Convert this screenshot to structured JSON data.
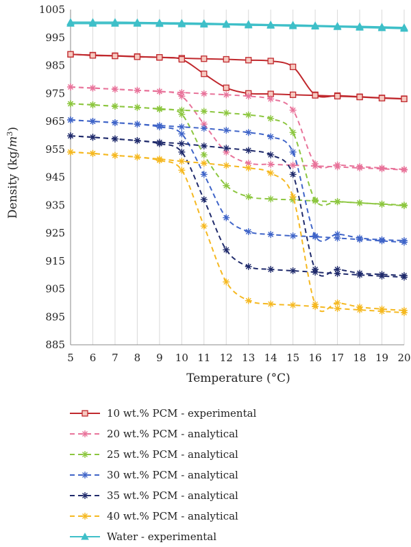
{
  "chart_data": {
    "type": "line",
    "xlabel": "Temperature (°C)",
    "ylabel_main": "Density (kg/",
    "ylabel_unit": "m",
    "ylabel_sup": "3",
    "ylabel_close": ")",
    "xlim": [
      5,
      20
    ],
    "ylim": [
      885,
      1005
    ],
    "x_ticks": [
      5,
      6,
      7,
      8,
      9,
      10,
      11,
      12,
      13,
      14,
      15,
      16,
      17,
      18,
      19,
      20
    ],
    "y_ticks": [
      885,
      895,
      905,
      915,
      925,
      935,
      945,
      955,
      965,
      975,
      985,
      995,
      1005
    ],
    "grid": "vertical",
    "legend_position": "below",
    "series": [
      {
        "name": "10 wt.% PCM - experimental",
        "color": "#C0282D",
        "marker": "square",
        "dashed": false,
        "points": [
          [
            5,
            989
          ],
          [
            6,
            988.7
          ],
          [
            7,
            988.5
          ],
          [
            8,
            988.2
          ],
          [
            9,
            987.9
          ],
          [
            10,
            987.6
          ],
          [
            11,
            987.4
          ],
          [
            12,
            987.2
          ],
          [
            13,
            986.9
          ],
          [
            14,
            986.6
          ],
          [
            15,
            984.5
          ],
          [
            16,
            974.5
          ],
          [
            17,
            974.2
          ],
          [
            18,
            973.8
          ],
          [
            19,
            973.4
          ],
          [
            20,
            973.1
          ]
        ],
        "points2": [
          [
            5,
            989
          ],
          [
            6,
            988.6
          ],
          [
            7,
            988.4
          ],
          [
            8,
            988.1
          ],
          [
            9,
            987.9
          ],
          [
            10,
            987.2
          ],
          [
            11,
            982
          ],
          [
            12,
            977
          ],
          [
            13,
            975
          ],
          [
            14,
            974.8
          ],
          [
            15,
            974.5
          ],
          [
            16,
            974.3
          ],
          [
            17,
            974
          ],
          [
            18,
            973.7
          ],
          [
            19,
            973.3
          ],
          [
            20,
            973.0
          ]
        ]
      },
      {
        "name": "20 wt.% PCM - analytical",
        "color": "#E8739A",
        "marker": "star",
        "dashed": true,
        "points": [
          [
            5,
            977.3
          ],
          [
            6,
            976.9
          ],
          [
            7,
            976.5
          ],
          [
            8,
            976.1
          ],
          [
            9,
            975.7
          ],
          [
            10,
            975.3
          ],
          [
            11,
            974.9
          ],
          [
            12,
            974.5
          ],
          [
            13,
            974
          ],
          [
            14,
            973
          ],
          [
            15,
            969
          ],
          [
            16,
            949.8
          ],
          [
            17,
            949.4
          ],
          [
            18,
            948.8
          ],
          [
            19,
            948.3
          ],
          [
            20,
            947.8
          ]
        ],
        "points2": [
          [
            5,
            977.3
          ],
          [
            6,
            976.9
          ],
          [
            7,
            976.5
          ],
          [
            8,
            976.1
          ],
          [
            9,
            975.7
          ],
          [
            10,
            974
          ],
          [
            11,
            964
          ],
          [
            12,
            954
          ],
          [
            13,
            950
          ],
          [
            14,
            949.6
          ],
          [
            15,
            949.3
          ],
          [
            16,
            949
          ],
          [
            17,
            948.7
          ],
          [
            18,
            948.3
          ],
          [
            19,
            948
          ],
          [
            20,
            947.6
          ]
        ]
      },
      {
        "name": "25 wt.% PCM - analytical",
        "color": "#8CC63F",
        "marker": "star",
        "dashed": true,
        "points": [
          [
            5,
            971.3
          ],
          [
            6,
            970.9
          ],
          [
            7,
            970.4
          ],
          [
            8,
            970
          ],
          [
            9,
            969.5
          ],
          [
            10,
            969
          ],
          [
            11,
            968.6
          ],
          [
            12,
            968
          ],
          [
            13,
            967.3
          ],
          [
            14,
            966
          ],
          [
            15,
            961
          ],
          [
            16,
            936.8
          ],
          [
            17,
            936.3
          ],
          [
            18,
            935.8
          ],
          [
            19,
            935.4
          ],
          [
            20,
            935
          ]
        ],
        "points2": [
          [
            5,
            971.3
          ],
          [
            6,
            970.9
          ],
          [
            7,
            970.4
          ],
          [
            8,
            970
          ],
          [
            9,
            969.3
          ],
          [
            10,
            967.5
          ],
          [
            11,
            953
          ],
          [
            12,
            942
          ],
          [
            13,
            938
          ],
          [
            14,
            937.2
          ],
          [
            15,
            936.9
          ],
          [
            16,
            936.5
          ],
          [
            17,
            936.2
          ],
          [
            18,
            935.8
          ],
          [
            19,
            935.3
          ],
          [
            20,
            934.8
          ]
        ]
      },
      {
        "name": "30 wt.% PCM - analytical",
        "color": "#3F64C8",
        "marker": "star",
        "dashed": true,
        "points": [
          [
            5,
            965.5
          ],
          [
            6,
            965
          ],
          [
            7,
            964.5
          ],
          [
            8,
            964
          ],
          [
            9,
            963.5
          ],
          [
            10,
            963
          ],
          [
            11,
            962.5
          ],
          [
            12,
            961.8
          ],
          [
            13,
            961
          ],
          [
            14,
            959.5
          ],
          [
            15,
            954
          ],
          [
            16,
            924
          ],
          [
            17,
            924.6
          ],
          [
            18,
            923.2
          ],
          [
            19,
            922.6
          ],
          [
            20,
            922.3
          ]
        ],
        "points2": [
          [
            5,
            965.5
          ],
          [
            6,
            965
          ],
          [
            7,
            964.5
          ],
          [
            8,
            964
          ],
          [
            9,
            963
          ],
          [
            10,
            960.5
          ],
          [
            11,
            946
          ],
          [
            12,
            930.5
          ],
          [
            13,
            925.5
          ],
          [
            14,
            924.5
          ],
          [
            15,
            924
          ],
          [
            16,
            923.7
          ],
          [
            17,
            923.2
          ],
          [
            18,
            922.7
          ],
          [
            19,
            922.2
          ],
          [
            20,
            921.7
          ]
        ]
      },
      {
        "name": "35 wt.% PCM - analytical",
        "color": "#1F2A6B",
        "marker": "star",
        "dashed": true,
        "points": [
          [
            5,
            959.8
          ],
          [
            6,
            959.3
          ],
          [
            7,
            958.7
          ],
          [
            8,
            958.1
          ],
          [
            9,
            957.5
          ],
          [
            10,
            957
          ],
          [
            11,
            956.2
          ],
          [
            12,
            955.4
          ],
          [
            13,
            954.6
          ],
          [
            14,
            953
          ],
          [
            15,
            946
          ],
          [
            16,
            912
          ],
          [
            17,
            912
          ],
          [
            18,
            910.6
          ],
          [
            19,
            910.2
          ],
          [
            20,
            909.8
          ]
        ],
        "points2": [
          [
            5,
            959.8
          ],
          [
            6,
            959.3
          ],
          [
            7,
            958.7
          ],
          [
            8,
            958.1
          ],
          [
            9,
            957
          ],
          [
            10,
            954
          ],
          [
            11,
            937
          ],
          [
            12,
            919
          ],
          [
            13,
            913
          ],
          [
            14,
            912
          ],
          [
            15,
            911.5
          ],
          [
            16,
            911
          ],
          [
            17,
            910.5
          ],
          [
            18,
            910
          ],
          [
            19,
            909.6
          ],
          [
            20,
            909.2
          ]
        ]
      },
      {
        "name": "40 wt.% PCM - analytical",
        "color": "#F5B820",
        "marker": "star",
        "dashed": true,
        "points": [
          [
            5,
            954
          ],
          [
            6,
            953.5
          ],
          [
            7,
            952.8
          ],
          [
            8,
            952.2
          ],
          [
            9,
            951.5
          ],
          [
            10,
            950.7
          ],
          [
            11,
            950
          ],
          [
            12,
            949.2
          ],
          [
            13,
            948.3
          ],
          [
            14,
            946.5
          ],
          [
            15,
            938
          ],
          [
            16,
            899.5
          ],
          [
            17,
            900
          ],
          [
            18,
            898.5
          ],
          [
            19,
            897.8
          ],
          [
            20,
            897.3
          ]
        ],
        "points2": [
          [
            5,
            954
          ],
          [
            6,
            953.5
          ],
          [
            7,
            952.8
          ],
          [
            8,
            952.2
          ],
          [
            9,
            951
          ],
          [
            10,
            947.5
          ],
          [
            11,
            927.5
          ],
          [
            12,
            907.5
          ],
          [
            13,
            900.8
          ],
          [
            14,
            899.6
          ],
          [
            15,
            899.2
          ],
          [
            16,
            898.7
          ],
          [
            17,
            898
          ],
          [
            18,
            897.5
          ],
          [
            19,
            897
          ],
          [
            20,
            896.5
          ]
        ]
      },
      {
        "name": "Water - experimental",
        "color": "#3EBFC8",
        "marker": "triangle",
        "dashed": false,
        "points": [
          [
            5,
            1000.5
          ],
          [
            6,
            1000.5
          ],
          [
            7,
            1000.5
          ],
          [
            8,
            1000.4
          ],
          [
            9,
            1000.3
          ],
          [
            10,
            1000.2
          ],
          [
            11,
            1000.1
          ],
          [
            12,
            999.9
          ],
          [
            13,
            999.8
          ],
          [
            14,
            999.6
          ],
          [
            15,
            999.5
          ],
          [
            16,
            999.3
          ],
          [
            17,
            999.1
          ],
          [
            18,
            999
          ],
          [
            19,
            998.8
          ],
          [
            20,
            998.6
          ]
        ],
        "points2": [
          [
            5,
            1000
          ],
          [
            6,
            1000
          ],
          [
            7,
            1000
          ],
          [
            8,
            1000
          ],
          [
            9,
            999.9
          ],
          [
            10,
            999.8
          ],
          [
            11,
            999.7
          ],
          [
            12,
            999.6
          ],
          [
            13,
            999.4
          ],
          [
            14,
            999.3
          ],
          [
            15,
            999.1
          ],
          [
            16,
            999
          ],
          [
            17,
            998.8
          ],
          [
            18,
            998.6
          ],
          [
            19,
            998.4
          ],
          [
            20,
            998.2
          ]
        ]
      }
    ]
  }
}
